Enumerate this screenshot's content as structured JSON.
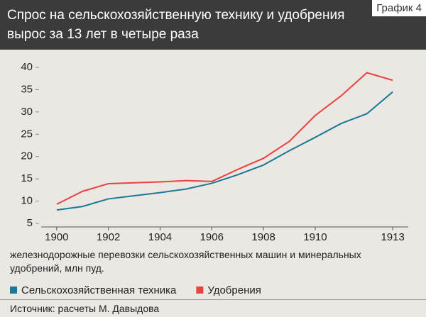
{
  "chart_data": {
    "type": "line",
    "title": "Спрос на сельскохозяйственную технику и удобрения вырос за 13 лет в четыре раза",
    "badge": "График 4",
    "x_label": "железнодорожные перевозки сельскохозяйственных машин и минеральных удобрений, млн пуд.",
    "source": "Источник: расчеты М. Давыдова",
    "x": [
      1900,
      1901,
      1902,
      1903,
      1904,
      1905,
      1906,
      1907,
      1908,
      1909,
      1910,
      1911,
      1912,
      1913
    ],
    "series": [
      {
        "name": "Сельскохозяйственная техника",
        "color": "#1b7897",
        "values": [
          8.0,
          8.8,
          10.5,
          11.2,
          11.9,
          12.7,
          14.0,
          15.9,
          18.1,
          21.3,
          24.3,
          27.4,
          29.6,
          34.5
        ]
      },
      {
        "name": "Удобрения",
        "color": "#e8433e",
        "values": [
          9.3,
          12.2,
          13.9,
          14.1,
          14.3,
          14.6,
          14.4,
          17.1,
          19.6,
          23.4,
          29.2,
          33.6,
          38.8,
          37.1
        ]
      }
    ],
    "xlim": [
      1899.4,
      1913.6
    ],
    "xticks": [
      1900,
      1902,
      1904,
      1906,
      1908,
      1910,
      1913
    ],
    "ylim": [
      5,
      40
    ],
    "yticks": [
      5,
      10,
      15,
      20,
      25,
      30,
      35,
      40
    ],
    "grid": false
  }
}
